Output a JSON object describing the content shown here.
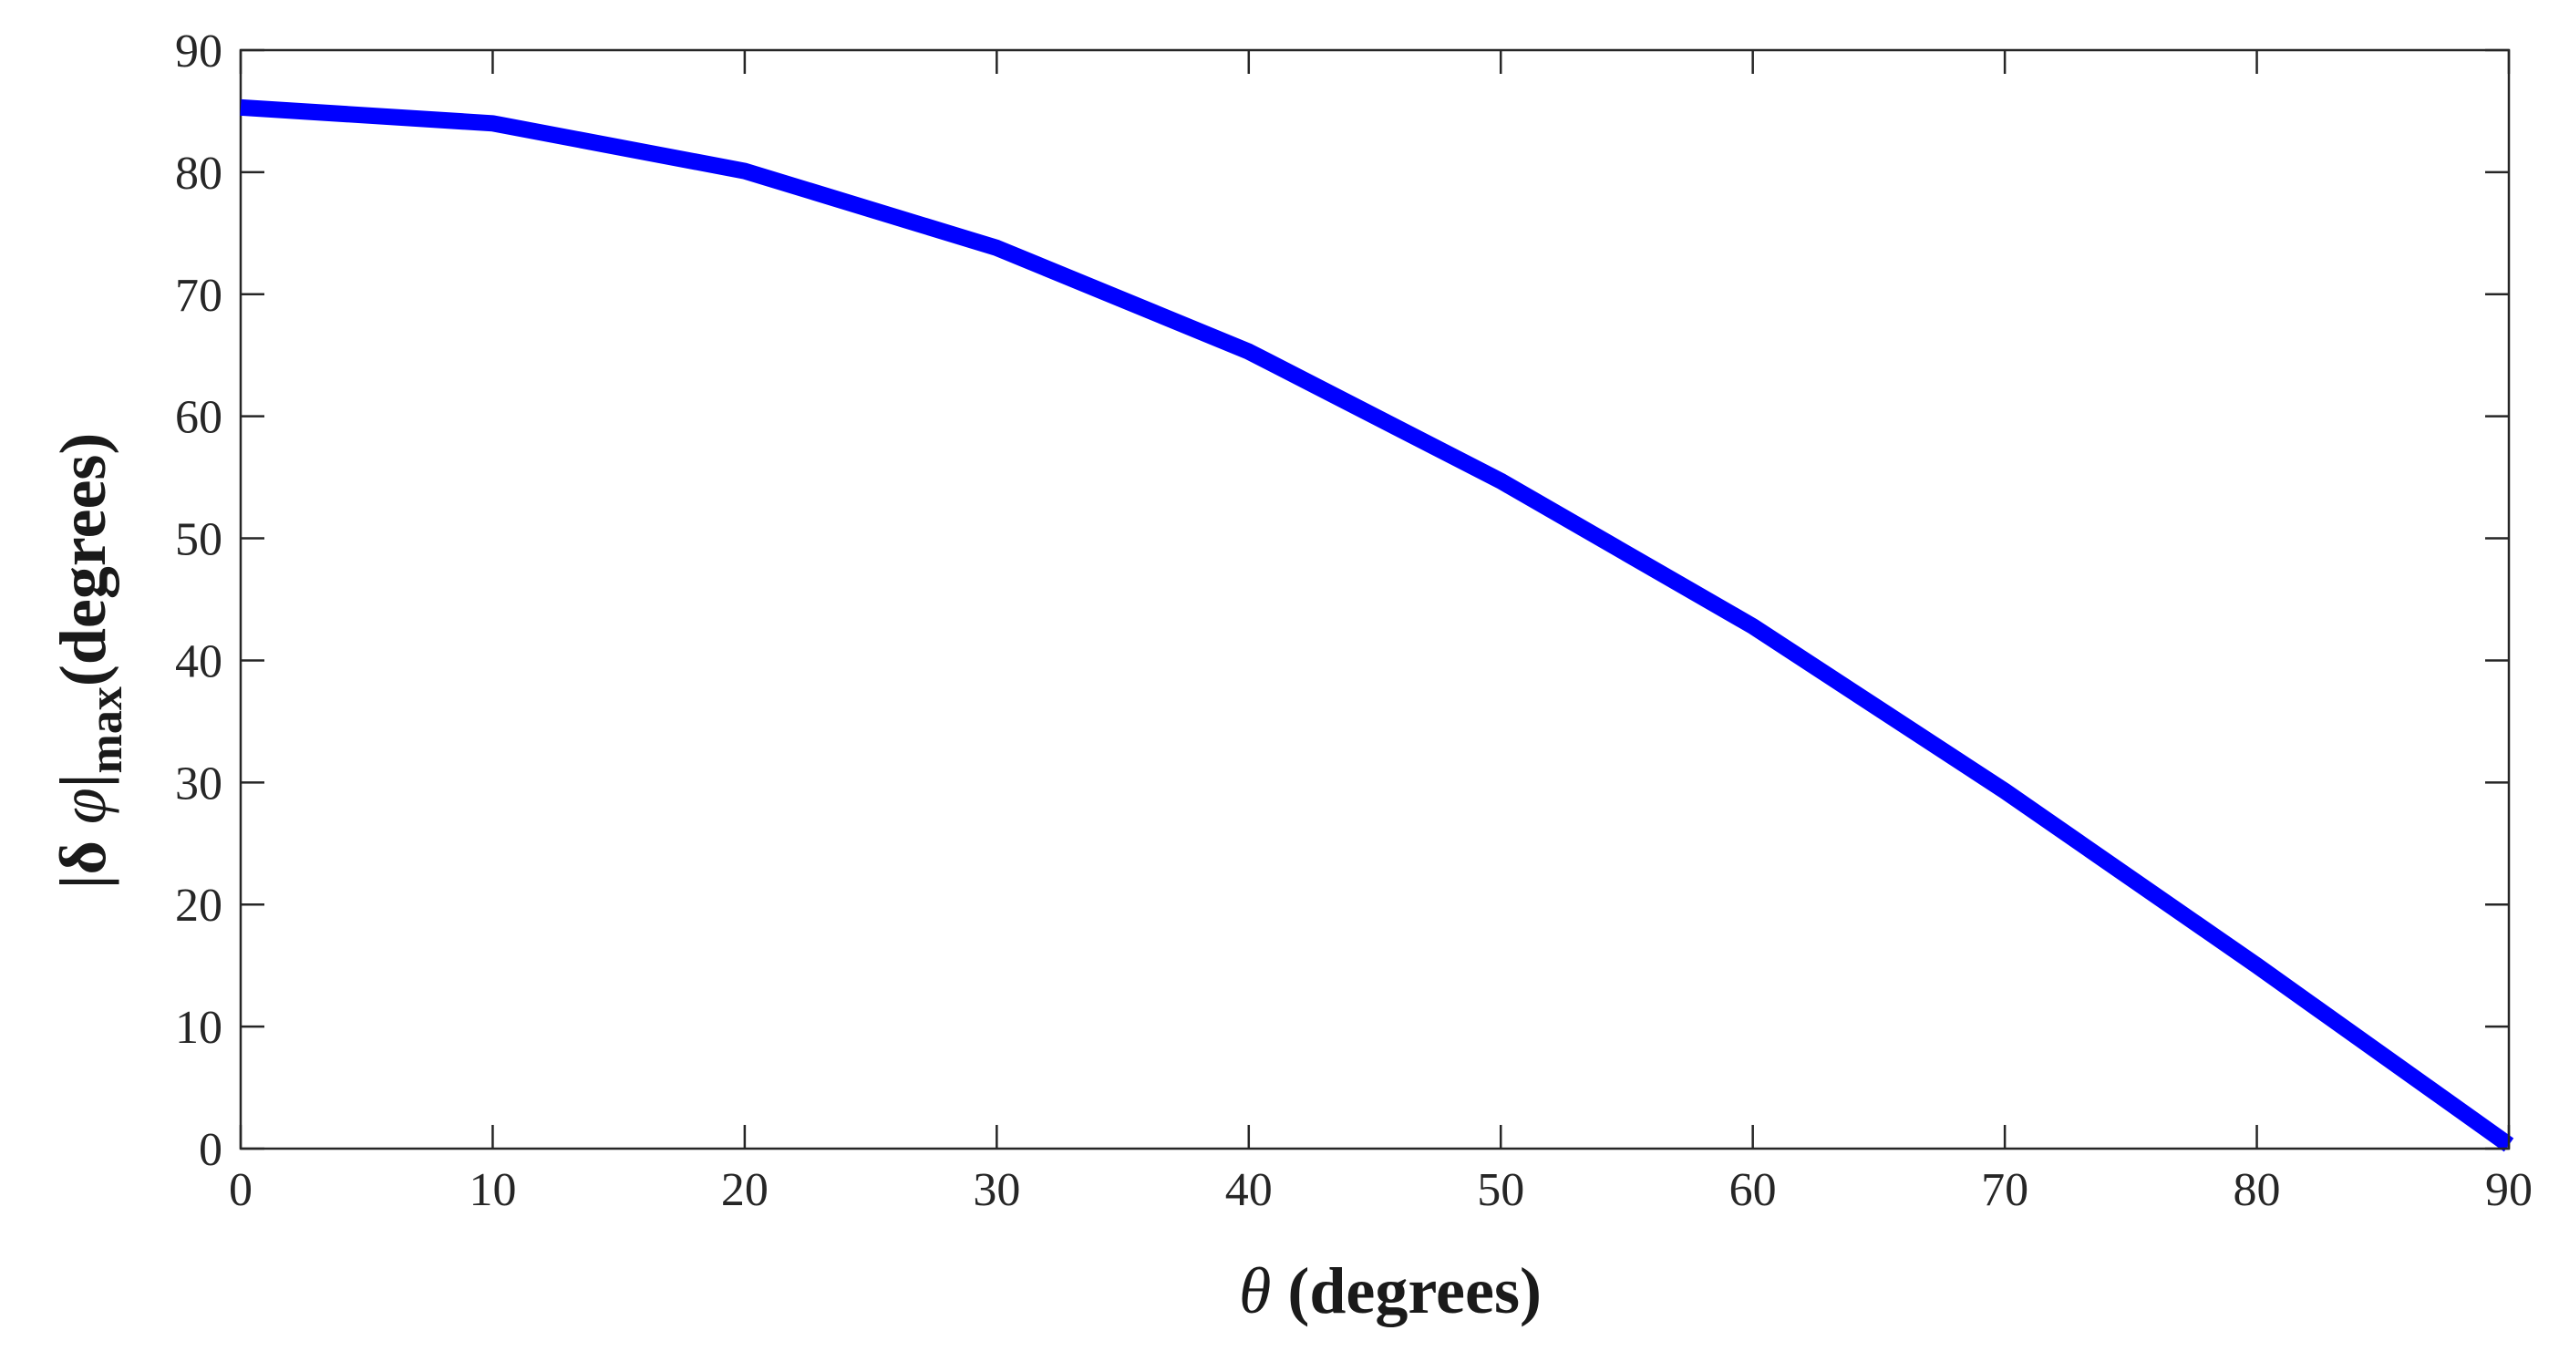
{
  "chart_data": {
    "type": "line",
    "xlim": [
      0,
      90
    ],
    "ylim": [
      0,
      90
    ],
    "x_ticks": [
      0,
      10,
      20,
      30,
      40,
      50,
      60,
      70,
      80,
      90
    ],
    "y_ticks": [
      0,
      10,
      20,
      30,
      40,
      50,
      60,
      70,
      80,
      90
    ],
    "x_tick_labels": [
      "0",
      "10",
      "20",
      "30",
      "40",
      "50",
      "60",
      "70",
      "80",
      "90"
    ],
    "y_tick_labels": [
      "0",
      "10",
      "20",
      "30",
      "40",
      "50",
      "60",
      "70",
      "80",
      "90"
    ],
    "xlabel": {
      "symbol": "θ",
      "text": "(degrees)"
    },
    "ylabel": {
      "prefix": "|δ ",
      "symbol": "φ",
      "bar": "|",
      "subscript": "max",
      "text": "(degrees)"
    },
    "grid": false,
    "box": true,
    "series": [
      {
        "color": "#0000ff",
        "x": [
          0,
          10,
          20,
          30,
          40,
          50,
          60,
          70,
          80,
          90
        ],
        "y": [
          85.3,
          84.0,
          80.1,
          73.8,
          65.3,
          54.7,
          42.8,
          29.3,
          15.0,
          0.3
        ]
      }
    ]
  }
}
